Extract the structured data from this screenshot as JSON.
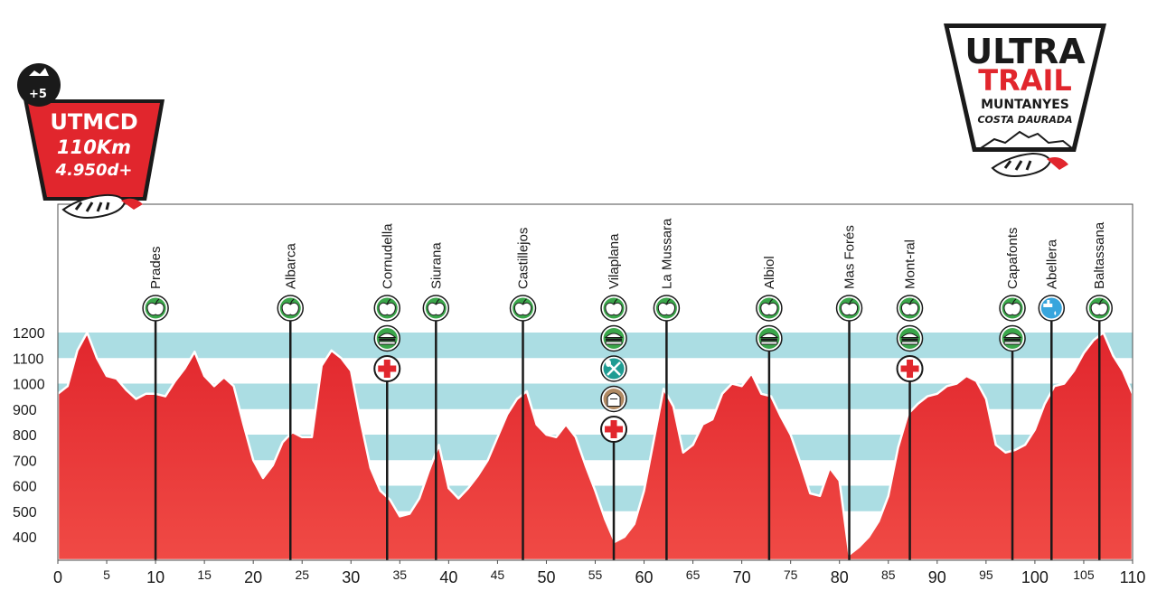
{
  "left_badge": {
    "lines": [
      "UTMCD",
      "110Km",
      "4.950d+"
    ],
    "small_mark": "+5",
    "color": "#e1262d"
  },
  "right_logo": {
    "line1": "ULTRA",
    "line2": "TRAIL",
    "line3": "MUNTANYES",
    "line4": "COSTA DAURADA",
    "accent": "#e1262d"
  },
  "chart_data": {
    "type": "area",
    "title": "",
    "xlabel": "",
    "ylabel": "",
    "xlim": [
      0,
      110
    ],
    "ylim": [
      300,
      1300
    ],
    "x_ticks": [
      0,
      5,
      10,
      15,
      20,
      25,
      30,
      35,
      40,
      45,
      50,
      55,
      60,
      65,
      70,
      75,
      80,
      85,
      90,
      95,
      100,
      105,
      110
    ],
    "y_ticks": [
      400,
      500,
      600,
      700,
      800,
      900,
      1000,
      1100,
      1200
    ],
    "band_color": "#abdde3",
    "fill_color": "#e1262d",
    "profile": [
      [
        0,
        960
      ],
      [
        1,
        990
      ],
      [
        2,
        1130
      ],
      [
        3,
        1200
      ],
      [
        4,
        1100
      ],
      [
        5,
        1030
      ],
      [
        6,
        1020
      ],
      [
        7,
        975
      ],
      [
        8,
        940
      ],
      [
        9,
        960
      ],
      [
        10,
        960
      ],
      [
        11,
        950
      ],
      [
        12,
        1010
      ],
      [
        13,
        1060
      ],
      [
        14,
        1125
      ],
      [
        15,
        1030
      ],
      [
        16,
        990
      ],
      [
        17,
        1025
      ],
      [
        18,
        990
      ],
      [
        19,
        840
      ],
      [
        20,
        700
      ],
      [
        21,
        630
      ],
      [
        22,
        680
      ],
      [
        23,
        770
      ],
      [
        24,
        810
      ],
      [
        25,
        790
      ],
      [
        26,
        790
      ],
      [
        27,
        1070
      ],
      [
        28,
        1130
      ],
      [
        29,
        1100
      ],
      [
        30,
        1050
      ],
      [
        31,
        850
      ],
      [
        32,
        670
      ],
      [
        33,
        580
      ],
      [
        34,
        545
      ],
      [
        35,
        480
      ],
      [
        36,
        490
      ],
      [
        37,
        550
      ],
      [
        38,
        660
      ],
      [
        39,
        760
      ],
      [
        40,
        590
      ],
      [
        41,
        550
      ],
      [
        42,
        590
      ],
      [
        43,
        640
      ],
      [
        44,
        700
      ],
      [
        45,
        790
      ],
      [
        46,
        880
      ],
      [
        47,
        940
      ],
      [
        48,
        970
      ],
      [
        49,
        840
      ],
      [
        50,
        800
      ],
      [
        51,
        790
      ],
      [
        52,
        840
      ],
      [
        53,
        790
      ],
      [
        54,
        680
      ],
      [
        55,
        580
      ],
      [
        56,
        470
      ],
      [
        57,
        380
      ],
      [
        58,
        400
      ],
      [
        59,
        450
      ],
      [
        60,
        580
      ],
      [
        61,
        780
      ],
      [
        62,
        980
      ],
      [
        63,
        910
      ],
      [
        64,
        730
      ],
      [
        65,
        760
      ],
      [
        66,
        840
      ],
      [
        67,
        860
      ],
      [
        68,
        960
      ],
      [
        69,
        1000
      ],
      [
        70,
        990
      ],
      [
        71,
        1040
      ],
      [
        72,
        960
      ],
      [
        73,
        950
      ],
      [
        74,
        870
      ],
      [
        75,
        800
      ],
      [
        76,
        690
      ],
      [
        77,
        570
      ],
      [
        78,
        560
      ],
      [
        79,
        670
      ],
      [
        80,
        620
      ],
      [
        81,
        330
      ],
      [
        82,
        360
      ],
      [
        83,
        400
      ],
      [
        84,
        460
      ],
      [
        85,
        560
      ],
      [
        86,
        750
      ],
      [
        87,
        880
      ],
      [
        88,
        920
      ],
      [
        89,
        950
      ],
      [
        90,
        960
      ],
      [
        91,
        990
      ],
      [
        92,
        1000
      ],
      [
        93,
        1030
      ],
      [
        94,
        1010
      ],
      [
        95,
        940
      ],
      [
        96,
        760
      ],
      [
        97,
        730
      ],
      [
        98,
        740
      ],
      [
        99,
        760
      ],
      [
        100,
        820
      ],
      [
        101,
        920
      ],
      [
        102,
        990
      ],
      [
        103,
        1000
      ],
      [
        104,
        1050
      ],
      [
        105,
        1120
      ],
      [
        106,
        1170
      ],
      [
        107,
        1200
      ],
      [
        108,
        1110
      ],
      [
        109,
        1050
      ],
      [
        110,
        960
      ]
    ],
    "checkpoints": [
      {
        "name": "Prades",
        "km": 10,
        "services": [
          "fruit"
        ]
      },
      {
        "name": "Albarca",
        "km": 23.8,
        "services": [
          "fruit"
        ]
      },
      {
        "name": "Cornudella",
        "km": 33.7,
        "services": [
          "fruit",
          "sandwich",
          "medical"
        ]
      },
      {
        "name": "Siurana",
        "km": 38.7,
        "services": [
          "fruit"
        ]
      },
      {
        "name": "Castillejos",
        "km": 47.6,
        "services": [
          "fruit"
        ]
      },
      {
        "name": "Vilaplana",
        "km": 56.9,
        "services": [
          "fruit",
          "sandwich",
          "meal",
          "bag",
          "medical"
        ]
      },
      {
        "name": "La Mussara",
        "km": 62.3,
        "services": [
          "fruit"
        ]
      },
      {
        "name": "Albiol",
        "km": 72.8,
        "services": [
          "fruit",
          "sandwich"
        ]
      },
      {
        "name": "Mas Forés",
        "km": 81,
        "services": [
          "fruit"
        ]
      },
      {
        "name": "Mont-ral",
        "km": 87.2,
        "services": [
          "fruit",
          "sandwich",
          "medical"
        ]
      },
      {
        "name": "Capafonts",
        "km": 97.7,
        "services": [
          "fruit",
          "sandwich"
        ]
      },
      {
        "name": "Abellera",
        "km": 101.7,
        "services": [
          "water"
        ]
      },
      {
        "name": "Baltassana",
        "km": 106.6,
        "services": [
          "fruit"
        ]
      }
    ],
    "service_icons": {
      "fruit": {
        "icon": "apple-icon",
        "color": "#3aa64a"
      },
      "sandwich": {
        "icon": "sandwich-icon",
        "color": "#3aa64a"
      },
      "meal": {
        "icon": "spoon-fork-icon",
        "color": "#1f9c93"
      },
      "bag": {
        "icon": "backpack-icon",
        "color": "#b08a63"
      },
      "medical": {
        "icon": "red-cross-icon",
        "color": "#ffffff"
      },
      "water": {
        "icon": "tap-water-icon",
        "color": "#37a5dd"
      }
    },
    "grid": false,
    "legend": "none"
  }
}
